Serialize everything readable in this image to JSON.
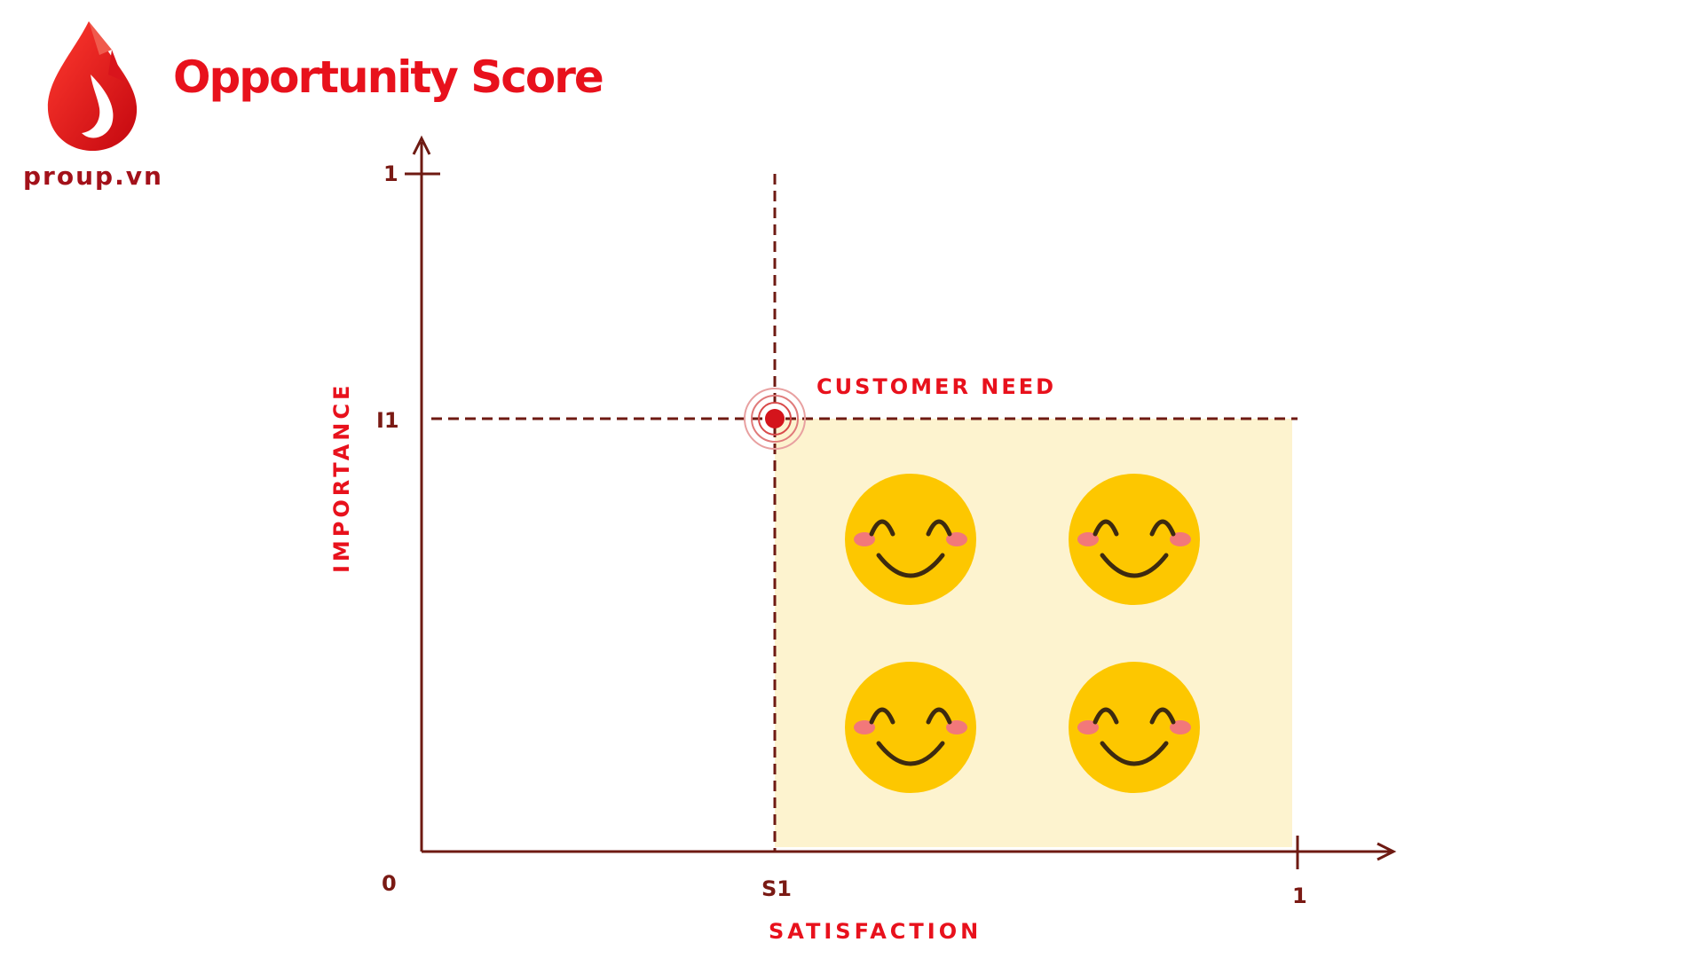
{
  "brand": {
    "logo_text": "proup.vn",
    "title": "Opportunity Score",
    "colors": {
      "primary": "#e8111c",
      "dark": "#7a1a14",
      "zone": "#fdf3cf",
      "face": "#fdc700"
    }
  },
  "diagram": {
    "y_axis_title": "IMPORTANCE",
    "x_axis_title": "SATISFACTION",
    "origin_label": "0",
    "y_max_label": "1",
    "x_max_label": "1",
    "i1_label": "I1",
    "s1_label": "S1",
    "point_label": "CUSTOMER NEED",
    "zone_icons": [
      "smiley-icon",
      "smiley-icon",
      "smiley-icon",
      "smiley-icon"
    ]
  }
}
